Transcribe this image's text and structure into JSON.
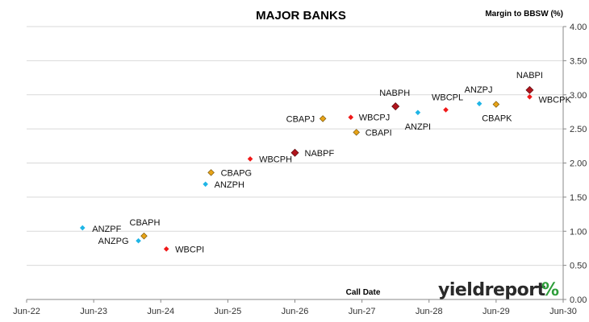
{
  "chart_data": {
    "type": "scatter",
    "title": "MAJOR BANKS",
    "xlabel": "Call Date",
    "ylabel": "Margin to BBSW (%)",
    "ylim": [
      0,
      4
    ],
    "yticks": [
      "0.00",
      "0.50",
      "1.00",
      "1.50",
      "2.00",
      "2.50",
      "3.00",
      "3.50",
      "4.00"
    ],
    "x_range": [
      "2022-06",
      "2030-06"
    ],
    "xticks": [
      "Jun-22",
      "Jun-23",
      "Jun-24",
      "Jun-25",
      "Jun-26",
      "Jun-27",
      "Jun-28",
      "Jun-29",
      "Jun-30"
    ],
    "grid": "horizontal",
    "legend": "none",
    "groups": {
      "ANZ": "#1fb5e6",
      "WBC": "#f01818",
      "CBA": "#e8a317",
      "NAB": "#b0141c"
    },
    "points": [
      {
        "label": "ANZPF",
        "group": "ANZ",
        "x": "2023-04",
        "y": 1.05
      },
      {
        "label": "CBAPH",
        "group": "CBA",
        "x": "2024-03",
        "y": 0.93
      },
      {
        "label": "ANZPG",
        "group": "ANZ",
        "x": "2024-02",
        "y": 0.86
      },
      {
        "label": "WBCPI",
        "group": "WBC",
        "x": "2024-07",
        "y": 0.74
      },
      {
        "label": "CBAPG",
        "group": "CBA",
        "x": "2025-03",
        "y": 1.86
      },
      {
        "label": "ANZPH",
        "group": "ANZ",
        "x": "2025-02",
        "y": 1.69
      },
      {
        "label": "WBCPH",
        "group": "WBC",
        "x": "2025-10",
        "y": 2.06
      },
      {
        "label": "NABPF",
        "group": "NAB",
        "x": "2026-06",
        "y": 2.15
      },
      {
        "label": "CBAPJ",
        "group": "CBA",
        "x": "2026-11",
        "y": 2.65
      },
      {
        "label": "WBCPJ",
        "group": "WBC",
        "x": "2027-04",
        "y": 2.67
      },
      {
        "label": "CBAPI",
        "group": "CBA",
        "x": "2027-05",
        "y": 2.45
      },
      {
        "label": "NABPH",
        "group": "NAB",
        "x": "2027-12",
        "y": 2.83
      },
      {
        "label": "ANZPI",
        "group": "ANZ",
        "x": "2028-04",
        "y": 2.74
      },
      {
        "label": "WBCPL",
        "group": "WBC",
        "x": "2028-09",
        "y": 2.78
      },
      {
        "label": "ANZPJ",
        "group": "ANZ",
        "x": "2029-03",
        "y": 2.87
      },
      {
        "label": "CBAPK",
        "group": "CBA",
        "x": "2029-06",
        "y": 2.86
      },
      {
        "label": "NABPI",
        "group": "NAB",
        "x": "2029-12",
        "y": 3.07
      },
      {
        "label": "WBCPK",
        "group": "WBC",
        "x": "2029-12",
        "y": 2.97
      }
    ]
  },
  "brand": {
    "name": "yieldreport",
    "suffix": "%"
  }
}
